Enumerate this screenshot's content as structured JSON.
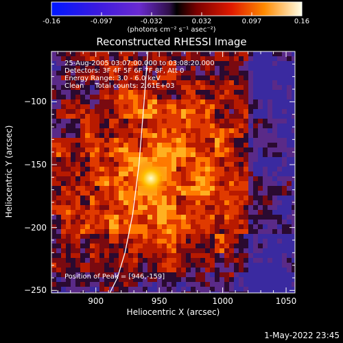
{
  "colorbar": {
    "ticks": [
      "-0.16",
      "-0.097",
      "-0.032",
      "0.032",
      "0.097",
      "0.16"
    ],
    "unit_label": "(photons cm⁻² s⁻¹ asec⁻²)",
    "range": [
      -0.16,
      0.16
    ]
  },
  "chart_data": {
    "type": "heatmap",
    "title": "Reconstructed RHESSI Image",
    "xlabel": "Heliocentric X (arcsec)",
    "ylabel": "Heliocentric Y (arcsec)",
    "xlim": [
      865,
      1057
    ],
    "ylim": [
      -252,
      -60
    ],
    "x_ticks": [
      900,
      950,
      1000,
      1050
    ],
    "x_tick_labels": [
      "900",
      "950",
      "1000",
      "1050"
    ],
    "y_ticks": [
      -100,
      -150,
      -200,
      -250
    ],
    "y_tick_labels": [
      "−100",
      "−150",
      "−200",
      "−250"
    ],
    "peak_position": [
      946,
      -159
    ],
    "limb_curve_x": [
      941,
      938,
      934,
      929,
      923,
      917,
      911
    ],
    "limb_curve_y": [
      -60,
      -100,
      -150,
      -190,
      -220,
      -240,
      -252
    ]
  },
  "annotations": {
    "time_line": "25-Aug-2005 03:07:00.000 to 03:08:20.000",
    "detectors_line": "Detectors: 3F 4F 5F 6F 7F 8F, Att 0",
    "energy_line": "Energy Range: 3.0 - 6.0 keV",
    "clean_line": "Clean     Total counts: 2.61E+03",
    "peak_line": "Position of Peak = [946,-159]"
  },
  "timestamp": "1-May-2022 23:45"
}
